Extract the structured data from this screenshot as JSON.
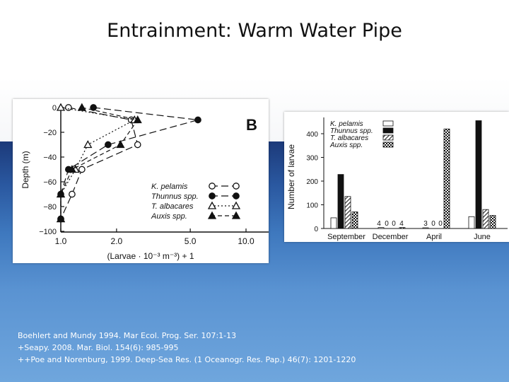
{
  "slide": {
    "title": "Entrainment: Warm Water Pipe",
    "citations": [
      "Boehlert and Mundy 1994. Mar Ecol. Prog. Ser. 107:1-13",
      "+Seapy. 2008. Mar. Biol. 154(6): 985-995",
      "++Poe and Norenburg, 1999.  Deep-Sea Res. (1 Oceanogr. Res. Pap.)  46(7): 1201-1220"
    ]
  },
  "chart_data": [
    {
      "type": "line",
      "panel_label": "B",
      "ylabel": "Depth (m)",
      "xlabel": "(Larvae · 10⁻³ m⁻³) + 1",
      "xscale": "log",
      "xlim": [
        1.0,
        10.0
      ],
      "ylim": [
        -100,
        0
      ],
      "x_ticks": [
        "1.0",
        "2.0",
        "5.0",
        "10.0"
      ],
      "x_tick_values": [
        1.0,
        2.0,
        5.0,
        10.0
      ],
      "y_ticks": [
        "0",
        "−20",
        "−40",
        "−60",
        "−80",
        "−100"
      ],
      "y_tick_values": [
        0,
        -20,
        -40,
        -60,
        -80,
        -100
      ],
      "legend_position": "bottom-right",
      "series": [
        {
          "name": "K. pelamis",
          "marker": "open-circle",
          "linestyle": "long-dash",
          "x": [
            1.1,
            2.4,
            2.6,
            1.3,
            1.15,
            1.0
          ],
          "y": [
            0,
            -10,
            -30,
            -50,
            -70,
            -90
          ]
        },
        {
          "name": "Thunnus spp.",
          "marker": "filled-circle",
          "linestyle": "long-dash",
          "x": [
            1.5,
            5.5,
            1.8,
            1.1,
            1.0,
            1.0
          ],
          "y": [
            0,
            -10,
            -30,
            -50,
            -70,
            -90
          ]
        },
        {
          "name": "T. albacares",
          "marker": "open-triangle",
          "linestyle": "dotted",
          "x": [
            1.0,
            2.5,
            1.4,
            1.2,
            1.0,
            1.0
          ],
          "y": [
            0,
            -10,
            -30,
            -50,
            -70,
            -90
          ]
        },
        {
          "name": "Auxis spp.",
          "marker": "filled-triangle",
          "linestyle": "dashed",
          "x": [
            1.3,
            2.6,
            2.1,
            1.15,
            1.0,
            1.0
          ],
          "y": [
            0,
            -10,
            -30,
            -50,
            -70,
            -90
          ]
        }
      ]
    },
    {
      "type": "bar",
      "ylabel": "Number of larvae",
      "categories": [
        "September",
        "December",
        "April",
        "June"
      ],
      "ylim": [
        0,
        450
      ],
      "y_ticks": [
        "0",
        "100",
        "200",
        "300",
        "400"
      ],
      "y_tick_values": [
        0,
        100,
        200,
        300,
        400
      ],
      "legend_position": "top-left",
      "series": [
        {
          "name": "K. pelamis",
          "pattern": "open",
          "values": [
            45,
            4,
            3,
            50
          ]
        },
        {
          "name": "Thunnus spp.",
          "pattern": "solid",
          "values": [
            228,
            0,
            0,
            455
          ]
        },
        {
          "name": "T. albacares",
          "pattern": "hatched",
          "values": [
            135,
            0,
            0,
            80
          ]
        },
        {
          "name": "Auxis spp.",
          "pattern": "checkered",
          "values": [
            70,
            4,
            420,
            55
          ]
        }
      ],
      "data_labels": [
        "4",
        "0",
        "0",
        "4",
        "3",
        "0",
        "0"
      ]
    }
  ]
}
